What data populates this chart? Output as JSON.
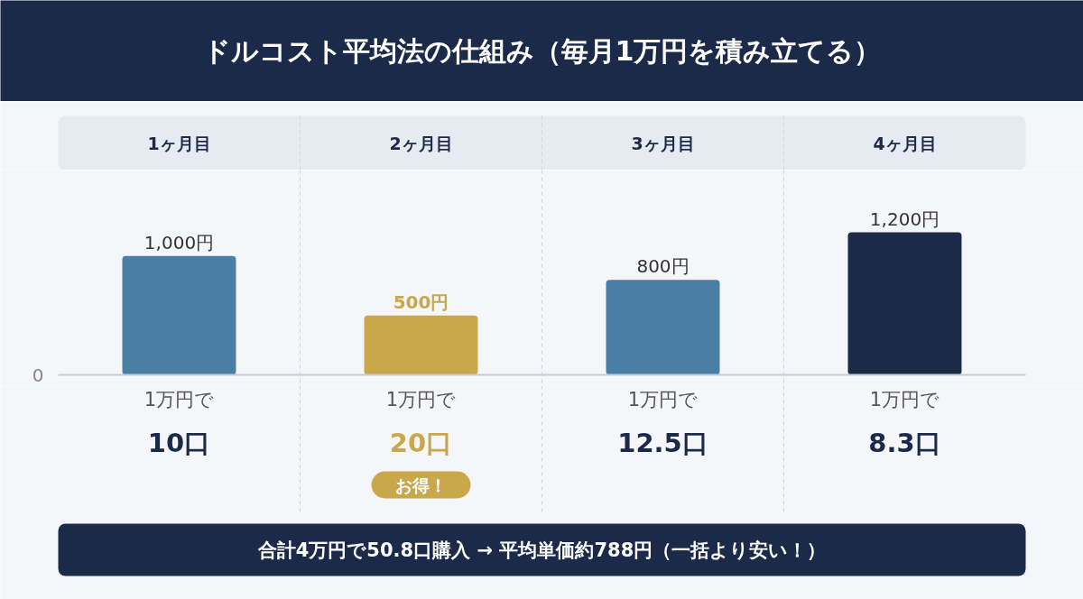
{
  "chart_data": {
    "type": "bar",
    "title": "ドルコスト平均法の仕組み（毎月1万円を積み立てる）",
    "categories": [
      "1ヶ月目",
      "2ヶ月目",
      "3ヶ月目",
      "4ヶ月目"
    ],
    "values": [
      1000,
      500,
      800,
      1200
    ],
    "colors": [
      "#4a7fa5",
      "#c9a84c",
      "#4a7fa5",
      "#1c2a4a"
    ],
    "value_labels": [
      "1,000円",
      "500円",
      "800円",
      "1,200円"
    ],
    "annotations": [
      "0",
      "1万円で",
      "1万円で",
      "1万円で",
      "1万円で",
      "10口",
      "20口",
      "12.5口",
      "8.3口",
      "お得！",
      "合計4万円で50.8口購入 → 平均単価約788円（一括より安い！）"
    ]
  }
}
